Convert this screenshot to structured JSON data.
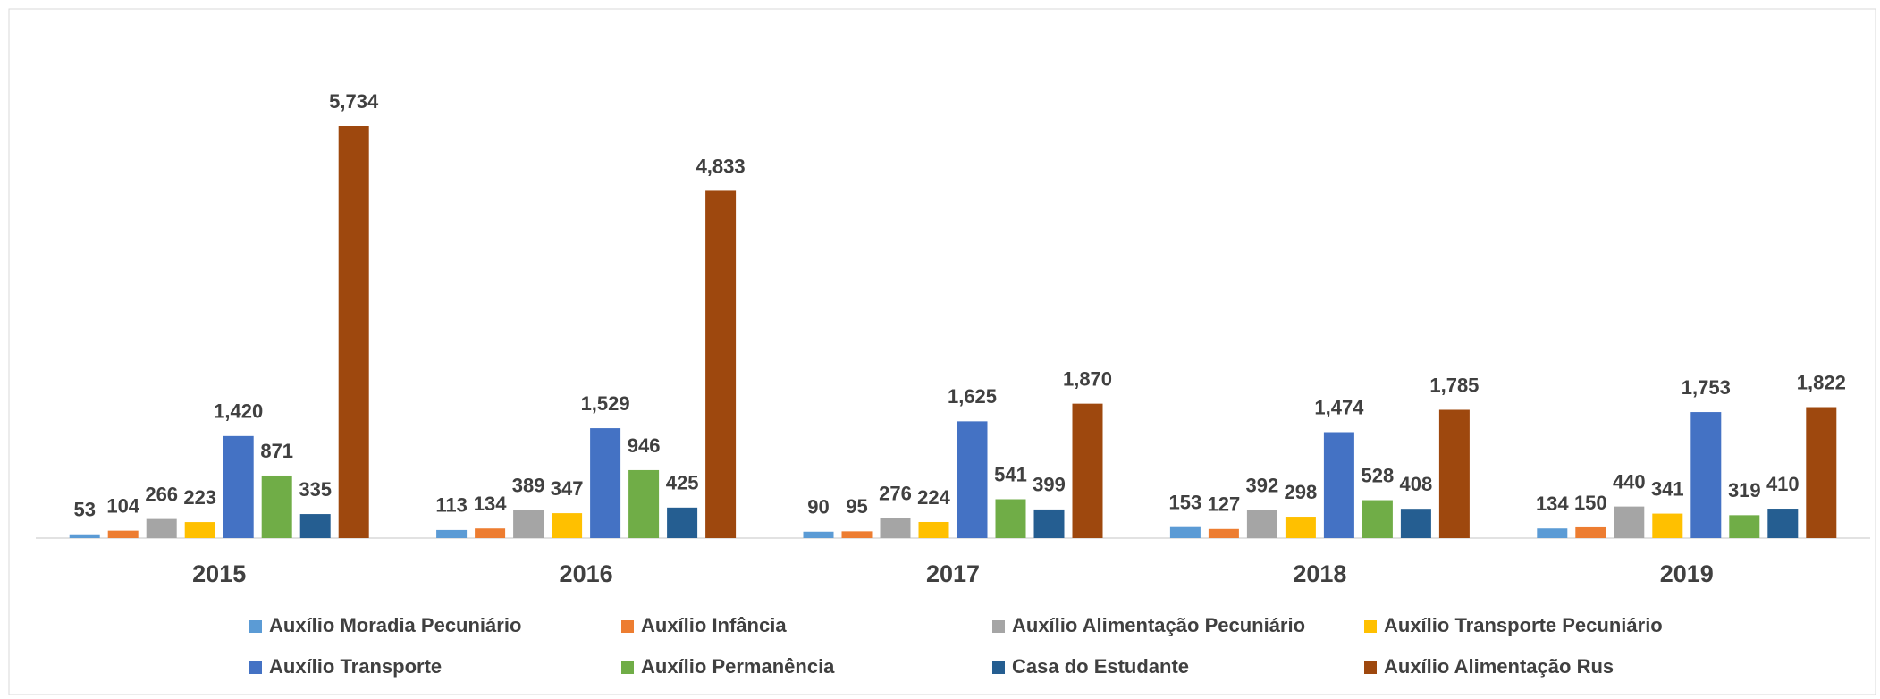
{
  "chart_data": {
    "type": "bar",
    "categories": [
      "2015",
      "2016",
      "2017",
      "2018",
      "2019"
    ],
    "series": [
      {
        "name": "Auxílio Moradia Pecuniário",
        "color": "#5b9bd5",
        "values": [
          53,
          113,
          90,
          153,
          134
        ],
        "value_labels": [
          "53",
          "113",
          "90",
          "153",
          "134"
        ]
      },
      {
        "name": "Auxílio Infância",
        "color": "#ed7d31",
        "values": [
          104,
          134,
          95,
          127,
          150
        ],
        "value_labels": [
          "104",
          "134",
          "95",
          "127",
          "150"
        ]
      },
      {
        "name": "Auxílio Alimentação Pecuniário",
        "color": "#a5a5a5",
        "values": [
          266,
          389,
          276,
          392,
          440
        ],
        "value_labels": [
          "266",
          "389",
          "276",
          "392",
          "440"
        ]
      },
      {
        "name": "Auxílio Transporte Pecuniário",
        "color": "#ffc000",
        "values": [
          223,
          347,
          224,
          298,
          341
        ],
        "value_labels": [
          "223",
          "347",
          "224",
          "298",
          "341"
        ]
      },
      {
        "name": "Auxílio Transporte",
        "color": "#4472c4",
        "values": [
          1420,
          1529,
          1625,
          1474,
          1753
        ],
        "value_labels": [
          "1,420",
          "1,529",
          "1,625",
          "1,474",
          "1,753"
        ]
      },
      {
        "name": "Auxílio Permanência",
        "color": "#70ad47",
        "values": [
          871,
          946,
          541,
          528,
          319
        ],
        "value_labels": [
          "871",
          "946",
          "541",
          "528",
          "319"
        ]
      },
      {
        "name": "Casa do Estudante",
        "color": "#255e91",
        "values": [
          335,
          425,
          399,
          408,
          410
        ],
        "value_labels": [
          "335",
          "425",
          "399",
          "408",
          "410"
        ]
      },
      {
        "name": "Auxílio Alimentação Rus",
        "color": "#9e480e",
        "values": [
          5734,
          4833,
          1870,
          1785,
          1822
        ],
        "value_labels": [
          "5,734",
          "4,833",
          "1,870",
          "1,785",
          "1,822"
        ]
      }
    ]
  }
}
